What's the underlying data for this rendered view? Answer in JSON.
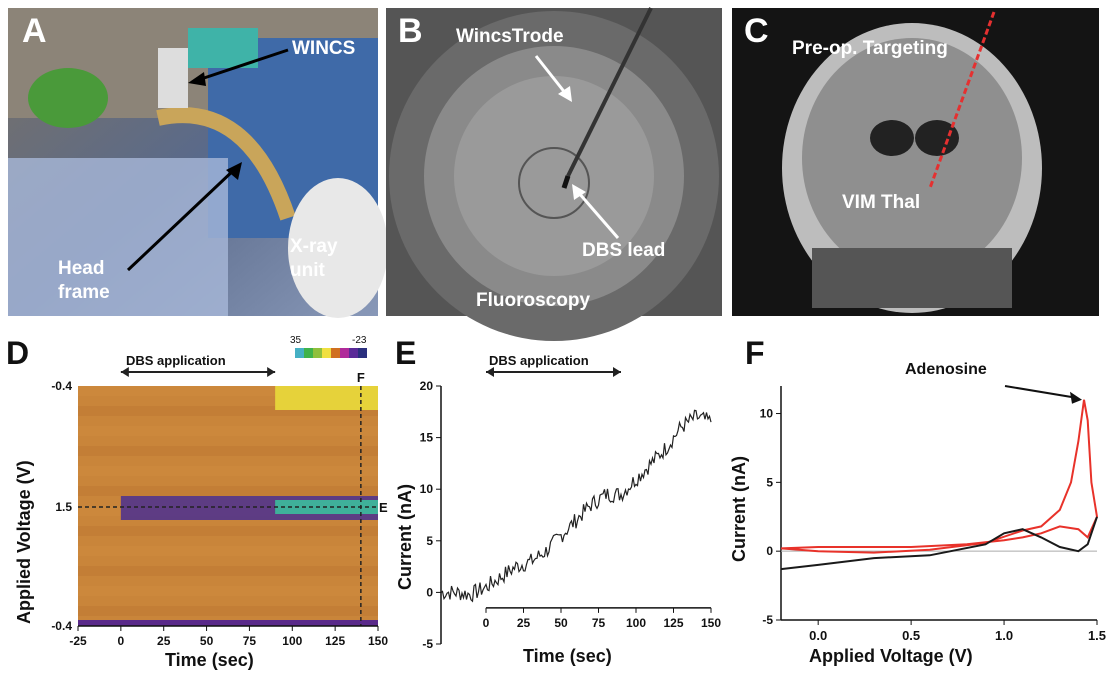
{
  "panel_a": {
    "letter": "A",
    "wincs": "WINCS",
    "head_frame": [
      "Head",
      "frame"
    ],
    "xray": [
      "X-ray",
      "unit"
    ]
  },
  "panel_b": {
    "letter": "B",
    "wincstrode": "WincsTrode",
    "dbs_lead": "DBS lead",
    "fluoroscopy": "Fluoroscopy"
  },
  "panel_c": {
    "letter": "C",
    "targeting": "Pre-op. Targeting",
    "vim": "VIM Thal"
  },
  "chart_data": [
    {
      "id": "D",
      "type": "heatmap",
      "letter": "D",
      "title": "",
      "xlabel": "Time (sec)",
      "ylabel": "Applied Voltage (V)",
      "x_ticks": [
        "-25",
        "0",
        "25",
        "50",
        "75",
        "100",
        "125",
        "150"
      ],
      "y_ticks": [
        "-0.4",
        "1.5",
        "-0.4"
      ],
      "xlim": [
        -25,
        150
      ],
      "annotation": "DBS application",
      "annotation_range": [
        0,
        90
      ],
      "colorbar_ticks": [
        "35",
        "-23"
      ],
      "colorbar_colors": [
        "#45b0c4",
        "#3fb34a",
        "#8fc03c",
        "#f0e040",
        "#d07020",
        "#b02a9a",
        "#5a2a98",
        "#2a2f7e"
      ],
      "marker_f": "F",
      "marker_f_time": 140,
      "marker_e": "E",
      "colors": {
        "background": "#c9853a",
        "band": "#4a2f90",
        "band_core": "#3fb09a",
        "top": "#e6d23a"
      }
    },
    {
      "id": "E",
      "type": "line",
      "letter": "E",
      "title": "",
      "xlabel": "Time (sec)",
      "ylabel": "Current (nA)",
      "x_ticks": [
        "0",
        "25",
        "50",
        "75",
        "100",
        "125",
        "150"
      ],
      "y_ticks": [
        "-5",
        "0",
        "5",
        "10",
        "15",
        "20"
      ],
      "xlim": [
        -30,
        150
      ],
      "ylim": [
        -5,
        20
      ],
      "annotation": "DBS application",
      "annotation_range": [
        0,
        90
      ],
      "series": [
        {
          "color": "#222222",
          "x": [
            -30,
            -20,
            -10,
            0,
            10,
            20,
            30,
            40,
            50,
            60,
            70,
            80,
            90,
            100,
            110,
            120,
            130,
            140,
            150
          ],
          "y": [
            0,
            0,
            -0.2,
            0.5,
            1.5,
            2.5,
            3.0,
            4.0,
            5.5,
            7.0,
            8.5,
            9.5,
            9.5,
            11.0,
            12.5,
            14.0,
            16.0,
            17.0,
            16.5
          ]
        }
      ]
    },
    {
      "id": "F",
      "type": "line",
      "letter": "F",
      "title": "",
      "xlabel": "Applied Voltage (V)",
      "ylabel": "Current (nA)",
      "x_ticks": [
        "0.0",
        "0.5",
        "1.0",
        "1.5"
      ],
      "y_ticks": [
        "-5",
        "0",
        "5",
        "10"
      ],
      "xlim": [
        -0.2,
        1.5
      ],
      "ylim": [
        -5,
        12
      ],
      "annotation": "Adenosine",
      "series": [
        {
          "color": "#e8322a",
          "x": [
            -0.2,
            0.0,
            0.3,
            0.6,
            0.9,
            1.1,
            1.2,
            1.3,
            1.36,
            1.4,
            1.43,
            1.45,
            1.47,
            1.5,
            1.45,
            1.4,
            1.3,
            1.2,
            1.1,
            1.0,
            0.8,
            0.5,
            0.2,
            0.0,
            -0.2
          ],
          "y": [
            0.2,
            0.0,
            -0.1,
            0.1,
            0.6,
            1.5,
            1.8,
            3.0,
            5.0,
            8.0,
            11.0,
            9.5,
            5.0,
            2.5,
            1.0,
            1.6,
            1.8,
            1.3,
            1.0,
            0.8,
            0.5,
            0.3,
            0.3,
            0.3,
            0.2
          ]
        },
        {
          "color": "#1a1a1a",
          "x": [
            -0.2,
            0.0,
            0.3,
            0.6,
            0.9,
            1.0,
            1.1,
            1.2,
            1.3,
            1.4,
            1.45,
            1.5
          ],
          "y": [
            -1.3,
            -1.0,
            -0.5,
            -0.3,
            0.5,
            1.3,
            1.6,
            1.0,
            0.3,
            0.0,
            0.5,
            2.5
          ]
        }
      ]
    }
  ]
}
